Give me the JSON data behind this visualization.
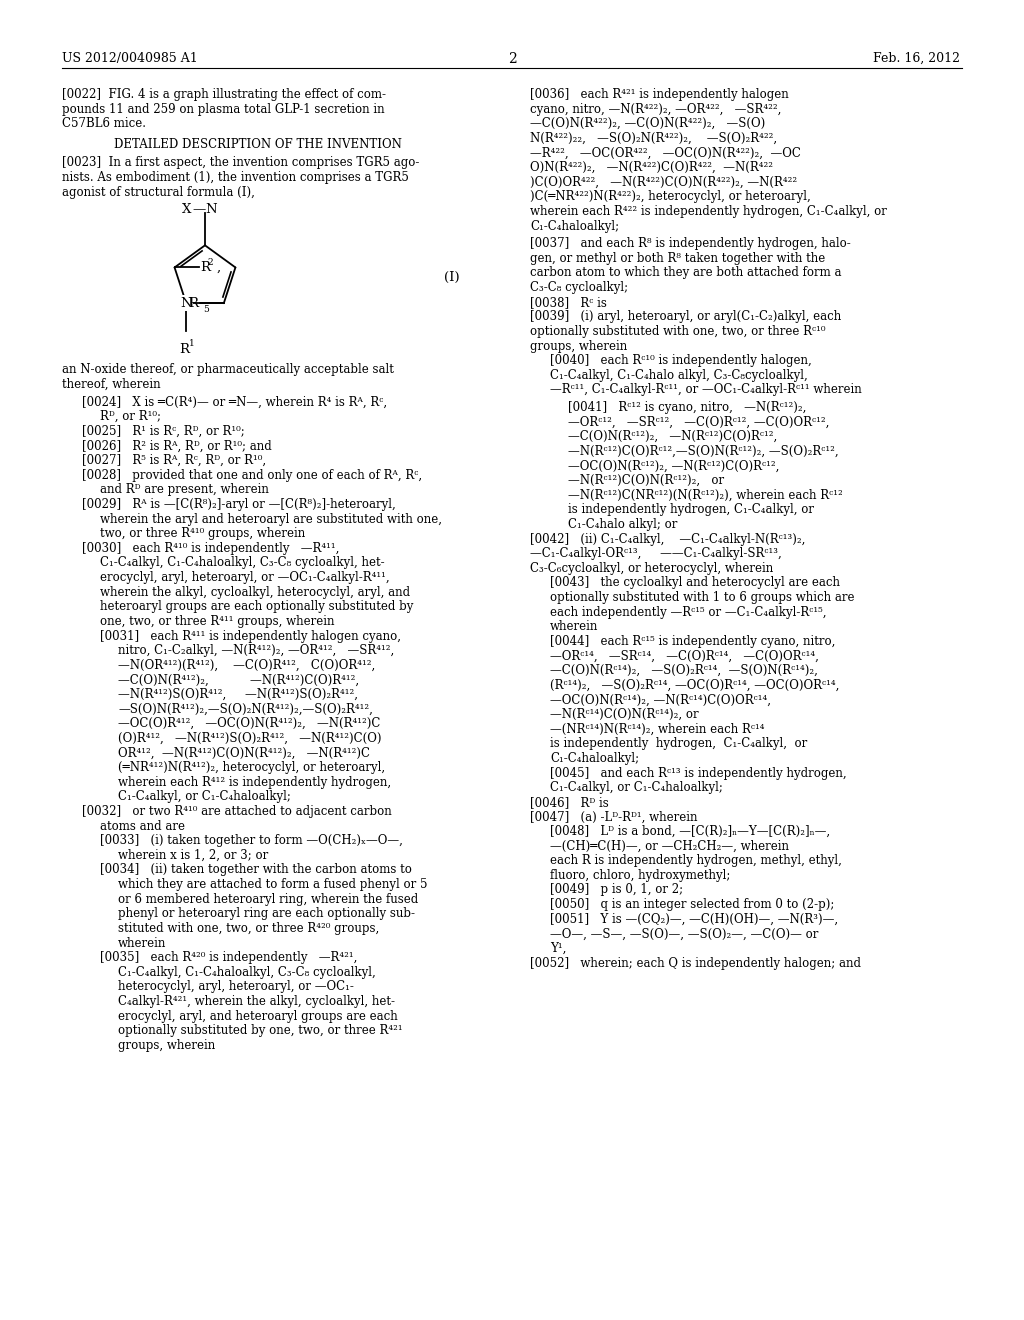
{
  "bg_color": "#ffffff",
  "header_left": "US 2012/0040985 A1",
  "header_right": "Feb. 16, 2012",
  "page_num": "2"
}
